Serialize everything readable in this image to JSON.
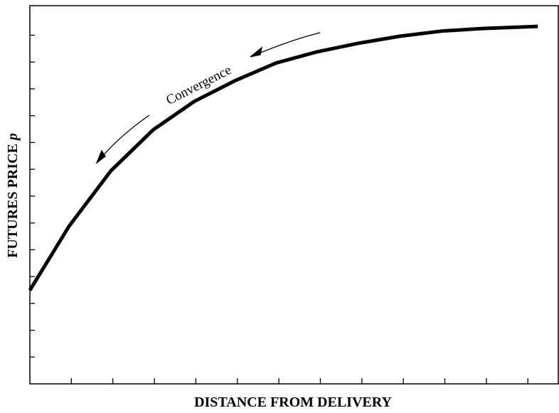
{
  "chart_data": {
    "type": "line",
    "x_label": "DISTANCE FROM DELIVERY",
    "y_label": "FUTURES PRICE",
    "y_label_symbol": "p",
    "annotation": "Convergence",
    "x": [
      0,
      0.94,
      1.95,
      2.97,
      3.96,
      4.94,
      5.93,
      6.92,
      7.92,
      8.91,
      9.91,
      10.9,
      12.24
    ],
    "series": [
      {
        "color": "#000000",
        "values": [
          3.49,
          5.87,
          7.94,
          9.47,
          10.53,
          11.3,
          11.96,
          12.38,
          12.7,
          12.96,
          13.15,
          13.25,
          13.33
        ]
      }
    ],
    "xlim": [
      0,
      12.75
    ],
    "ylim": [
      0,
      14.1
    ],
    "xticks": [
      1,
      2,
      3,
      4,
      5,
      6,
      7,
      8,
      9,
      10,
      11,
      12
    ],
    "yticks": [
      1,
      2,
      3,
      4,
      5,
      6,
      7,
      8,
      9,
      10,
      11,
      12,
      13
    ],
    "grid": false
  }
}
